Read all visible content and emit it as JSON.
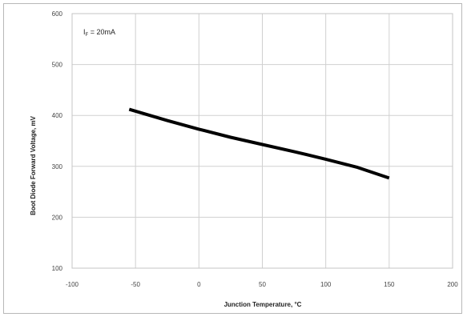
{
  "chart_data": {
    "type": "line",
    "title": "",
    "xlabel": "Junction Temperature, °C",
    "ylabel": "Boot Diode Forward Voltage, mV",
    "xlim": [
      -100,
      200
    ],
    "ylim": [
      100,
      600
    ],
    "xticks": [
      -100,
      -50,
      0,
      50,
      100,
      150,
      200
    ],
    "yticks": [
      100,
      200,
      300,
      400,
      500,
      600
    ],
    "x_tick_labels": [
      "-100",
      "-50",
      "0",
      "50",
      "100",
      "150",
      "200"
    ],
    "y_tick_labels": [
      "100",
      "200",
      "300",
      "400",
      "500",
      "600"
    ],
    "grid": true,
    "legend": "none",
    "annotation": "I_F = 20mA",
    "annotation_main": "I",
    "annotation_sub": "F",
    "annotation_rest": " = 20mA",
    "line_color": "#000000",
    "series": [
      {
        "x": [
          -55,
          -25,
          0,
          25,
          50,
          75,
          100,
          125,
          150
        ],
        "y": [
          412,
          390,
          373,
          357,
          343,
          329,
          314,
          298,
          277
        ]
      }
    ]
  }
}
